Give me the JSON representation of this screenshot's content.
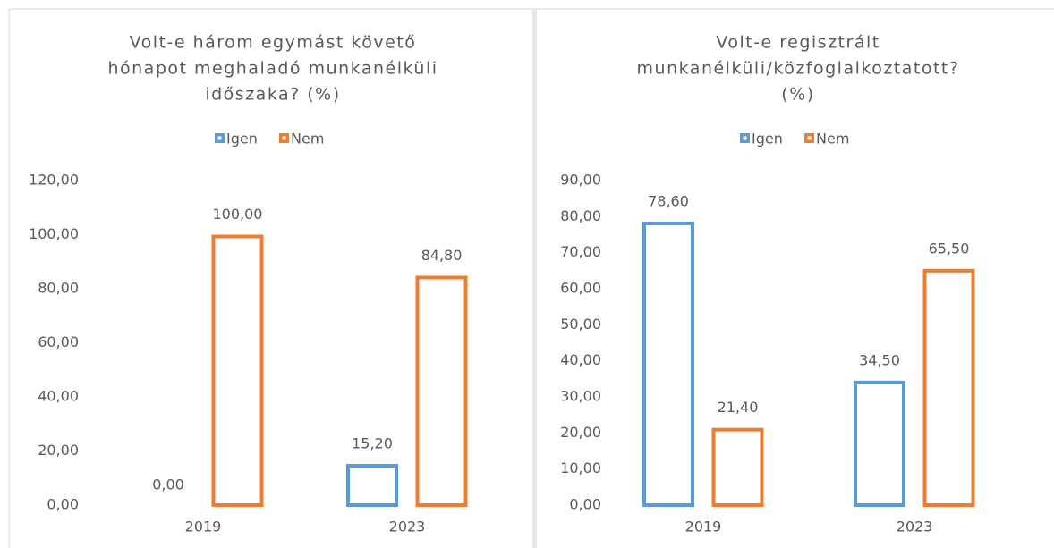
{
  "chart_data": [
    {
      "type": "bar",
      "title": [
        "Volt-e három egymást követő",
        "hónapot meghaladó munkanélküli",
        "időszaka? (%)"
      ],
      "categories": [
        "2019",
        "2023"
      ],
      "series": [
        {
          "name": "Igen",
          "color": "#5b9bd5",
          "values": [
            0,
            15.2
          ],
          "value_labels": [
            "0,00",
            "15,20"
          ]
        },
        {
          "name": "Nem",
          "color": "#ed7d31",
          "values": [
            100,
            84.8
          ],
          "value_labels": [
            "100,00",
            "84,80"
          ]
        }
      ],
      "ylim": [
        0,
        120
      ],
      "yticks": [
        {
          "value": 0,
          "label": "0,00"
        },
        {
          "value": 20,
          "label": "20,00"
        },
        {
          "value": 40,
          "label": "40,00"
        },
        {
          "value": 60,
          "label": "60,00"
        },
        {
          "value": 80,
          "label": "80,00"
        },
        {
          "value": 100,
          "label": "100,00"
        },
        {
          "value": 120,
          "label": "120,00"
        }
      ],
      "legend": "top",
      "grid": false
    },
    {
      "type": "bar",
      "title": [
        "Volt-e regisztrált",
        "munkanélküli/közfoglalkoztatott?",
        "(%)"
      ],
      "categories": [
        "2019",
        "2023"
      ],
      "series": [
        {
          "name": "Igen",
          "color": "#5b9bd5",
          "values": [
            78.6,
            34.5
          ],
          "value_labels": [
            "78,60",
            "34,50"
          ]
        },
        {
          "name": "Nem",
          "color": "#ed7d31",
          "values": [
            21.4,
            65.5
          ],
          "value_labels": [
            "21,40",
            "65,50"
          ]
        }
      ],
      "ylim": [
        0,
        90
      ],
      "yticks": [
        {
          "value": 0,
          "label": "0,00"
        },
        {
          "value": 10,
          "label": "10,00"
        },
        {
          "value": 20,
          "label": "20,00"
        },
        {
          "value": 30,
          "label": "30,00"
        },
        {
          "value": 40,
          "label": "40,00"
        },
        {
          "value": 50,
          "label": "50,00"
        },
        {
          "value": 60,
          "label": "60,00"
        },
        {
          "value": 70,
          "label": "70,00"
        },
        {
          "value": 80,
          "label": "80,00"
        },
        {
          "value": 90,
          "label": "90,00"
        }
      ],
      "legend": "top",
      "grid": false
    }
  ]
}
